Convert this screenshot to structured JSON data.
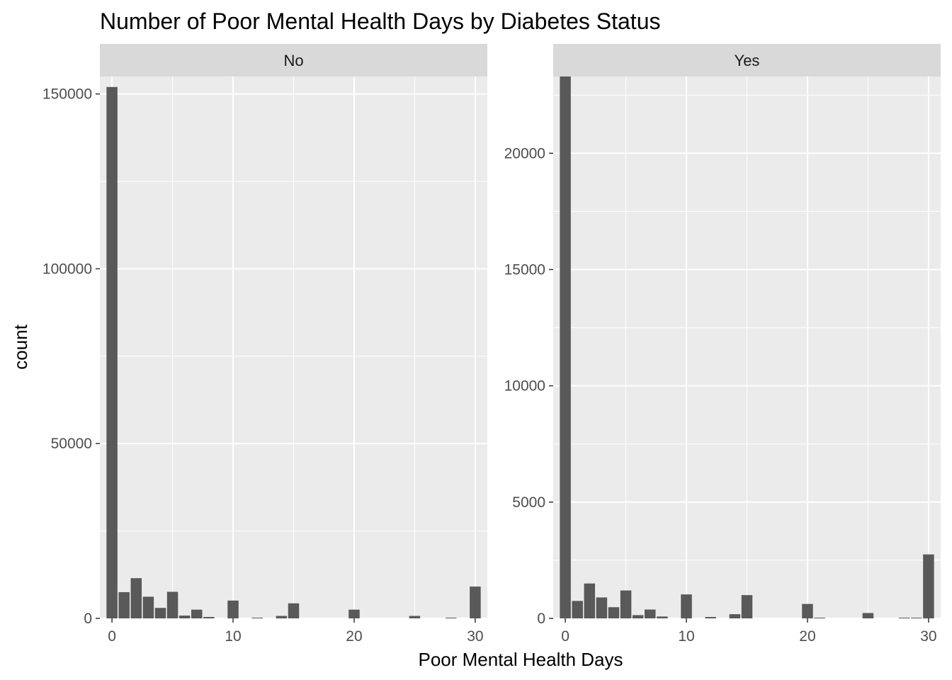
{
  "chart_data": {
    "type": "bar",
    "title": "Number of Poor Mental Health Days by Diabetes Status",
    "xlabel": "Poor Mental Health Days",
    "ylabel": "count",
    "grid": true,
    "facet_by": "Diabetes Status",
    "x": [
      0,
      1,
      2,
      3,
      4,
      5,
      6,
      7,
      8,
      9,
      10,
      11,
      12,
      13,
      14,
      15,
      16,
      17,
      18,
      19,
      20,
      21,
      22,
      23,
      24,
      25,
      26,
      27,
      28,
      29,
      30
    ],
    "xlim": [
      -1,
      31
    ],
    "x_ticks": [
      0,
      10,
      20,
      30
    ],
    "x_tick_labels": [
      "0",
      "10",
      "20",
      "30"
    ],
    "panels": [
      {
        "name": "No",
        "ylim": [
          0,
          155000
        ],
        "y_ticks": [
          0,
          50000,
          100000,
          150000
        ],
        "y_tick_labels": [
          "0",
          "50000",
          "100000",
          "150000"
        ],
        "values": [
          152000,
          7500,
          11500,
          6200,
          3000,
          7600,
          800,
          2500,
          400,
          0,
          5100,
          0,
          200,
          0,
          700,
          4300,
          0,
          0,
          0,
          0,
          2500,
          0,
          0,
          0,
          0,
          700,
          0,
          0,
          200,
          0,
          9100
        ]
      },
      {
        "name": "Yes",
        "ylim": [
          0,
          23300
        ],
        "y_ticks": [
          0,
          5000,
          10000,
          15000,
          20000
        ],
        "y_tick_labels": [
          "0",
          "5000",
          "10000",
          "15000",
          "20000"
        ],
        "values": [
          23300,
          750,
          1500,
          900,
          480,
          1200,
          140,
          380,
          80,
          0,
          1030,
          0,
          60,
          0,
          180,
          1000,
          0,
          0,
          0,
          0,
          620,
          30,
          0,
          0,
          0,
          230,
          0,
          0,
          30,
          30,
          2750
        ]
      }
    ],
    "colors": {
      "bar": "#595959",
      "panel_bg": "#ebebeb",
      "strip_bg": "#d9d9d9",
      "grid": "#ffffff",
      "tick": "#333333"
    }
  }
}
